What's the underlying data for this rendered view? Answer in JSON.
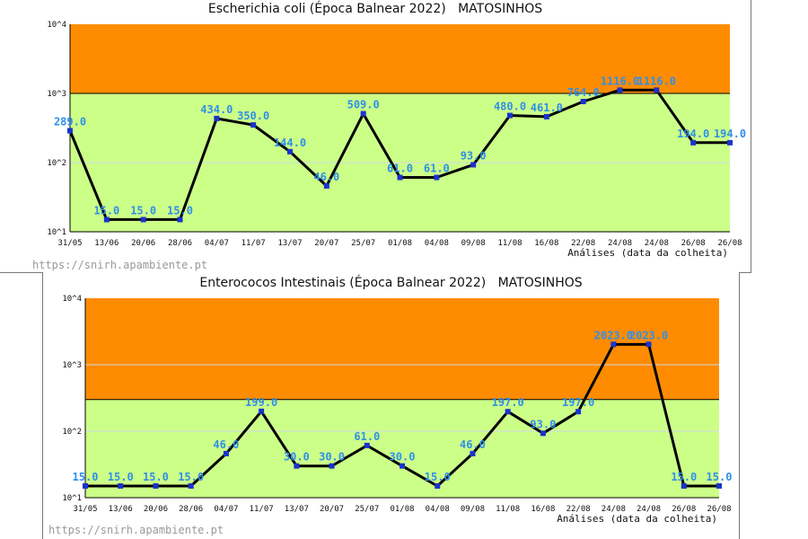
{
  "colors": {
    "danger_zone": "#ff8c00",
    "ok_zone": "#ccff88",
    "line": "#000000",
    "marker": "#1a33cc",
    "label": "#2f8fe8"
  },
  "credit": "https://snirh.apambiente.pt",
  "chart_data": [
    {
      "type": "line",
      "title": "Escherichia coli (Época Balnear 2022)   MATOSINHOS",
      "xlabel": "Análises (data da colheita)",
      "ylabel": "",
      "y_scale": "log",
      "ylim": [
        10,
        10000
      ],
      "y_ticks": [
        "10^1",
        "10^2",
        "10^3",
        "10^4"
      ],
      "threshold": 1000,
      "categories": [
        "31/05",
        "13/06",
        "20/06",
        "28/06",
        "04/07",
        "11/07",
        "13/07",
        "20/07",
        "25/07",
        "01/08",
        "04/08",
        "09/08",
        "11/08",
        "16/08",
        "22/08",
        "24/08",
        "24/08",
        "26/08",
        "26/08"
      ],
      "values": [
        289,
        15,
        15,
        15,
        434,
        350,
        144,
        46,
        509,
        61,
        61,
        93,
        480,
        461,
        764,
        1116,
        1116,
        194,
        194
      ],
      "data_labels": [
        "289.0",
        "15.0",
        "15.0",
        "15.0",
        "434.0",
        "350.0",
        "144.0",
        "46.0",
        "509.0",
        "61.0",
        "61.0",
        "93.0",
        "480.0",
        "461.0",
        "764.0",
        "1116.0",
        "1116.0",
        "194.0",
        "194.0"
      ]
    },
    {
      "type": "line",
      "title": "Enterococos Intestinais (Época Balnear 2022)   MATOSINHOS",
      "xlabel": "Análises (data da colheita)",
      "ylabel": "",
      "y_scale": "log",
      "ylim": [
        10,
        10000
      ],
      "y_ticks": [
        "10^1",
        "10^2",
        "10^3",
        "10^4"
      ],
      "threshold": 300,
      "categories": [
        "31/05",
        "13/06",
        "20/06",
        "28/06",
        "04/07",
        "11/07",
        "13/07",
        "20/07",
        "25/07",
        "01/08",
        "04/08",
        "09/08",
        "11/08",
        "16/08",
        "22/08",
        "24/08",
        "24/08",
        "26/08",
        "26/08"
      ],
      "values": [
        15,
        15,
        15,
        15,
        46,
        199,
        30,
        30,
        61,
        30,
        15,
        46,
        197,
        93,
        197,
        2023,
        2023,
        15,
        15
      ],
      "data_labels": [
        "15.0",
        "15.0",
        "15.0",
        "15.0",
        "46.0",
        "199.0",
        "30.0",
        "30.0",
        "61.0",
        "30.0",
        "15.0",
        "46.0",
        "197.0",
        "93.0",
        "197.0",
        "2023.0",
        "2023.0",
        "15.0",
        "15.0"
      ]
    }
  ]
}
